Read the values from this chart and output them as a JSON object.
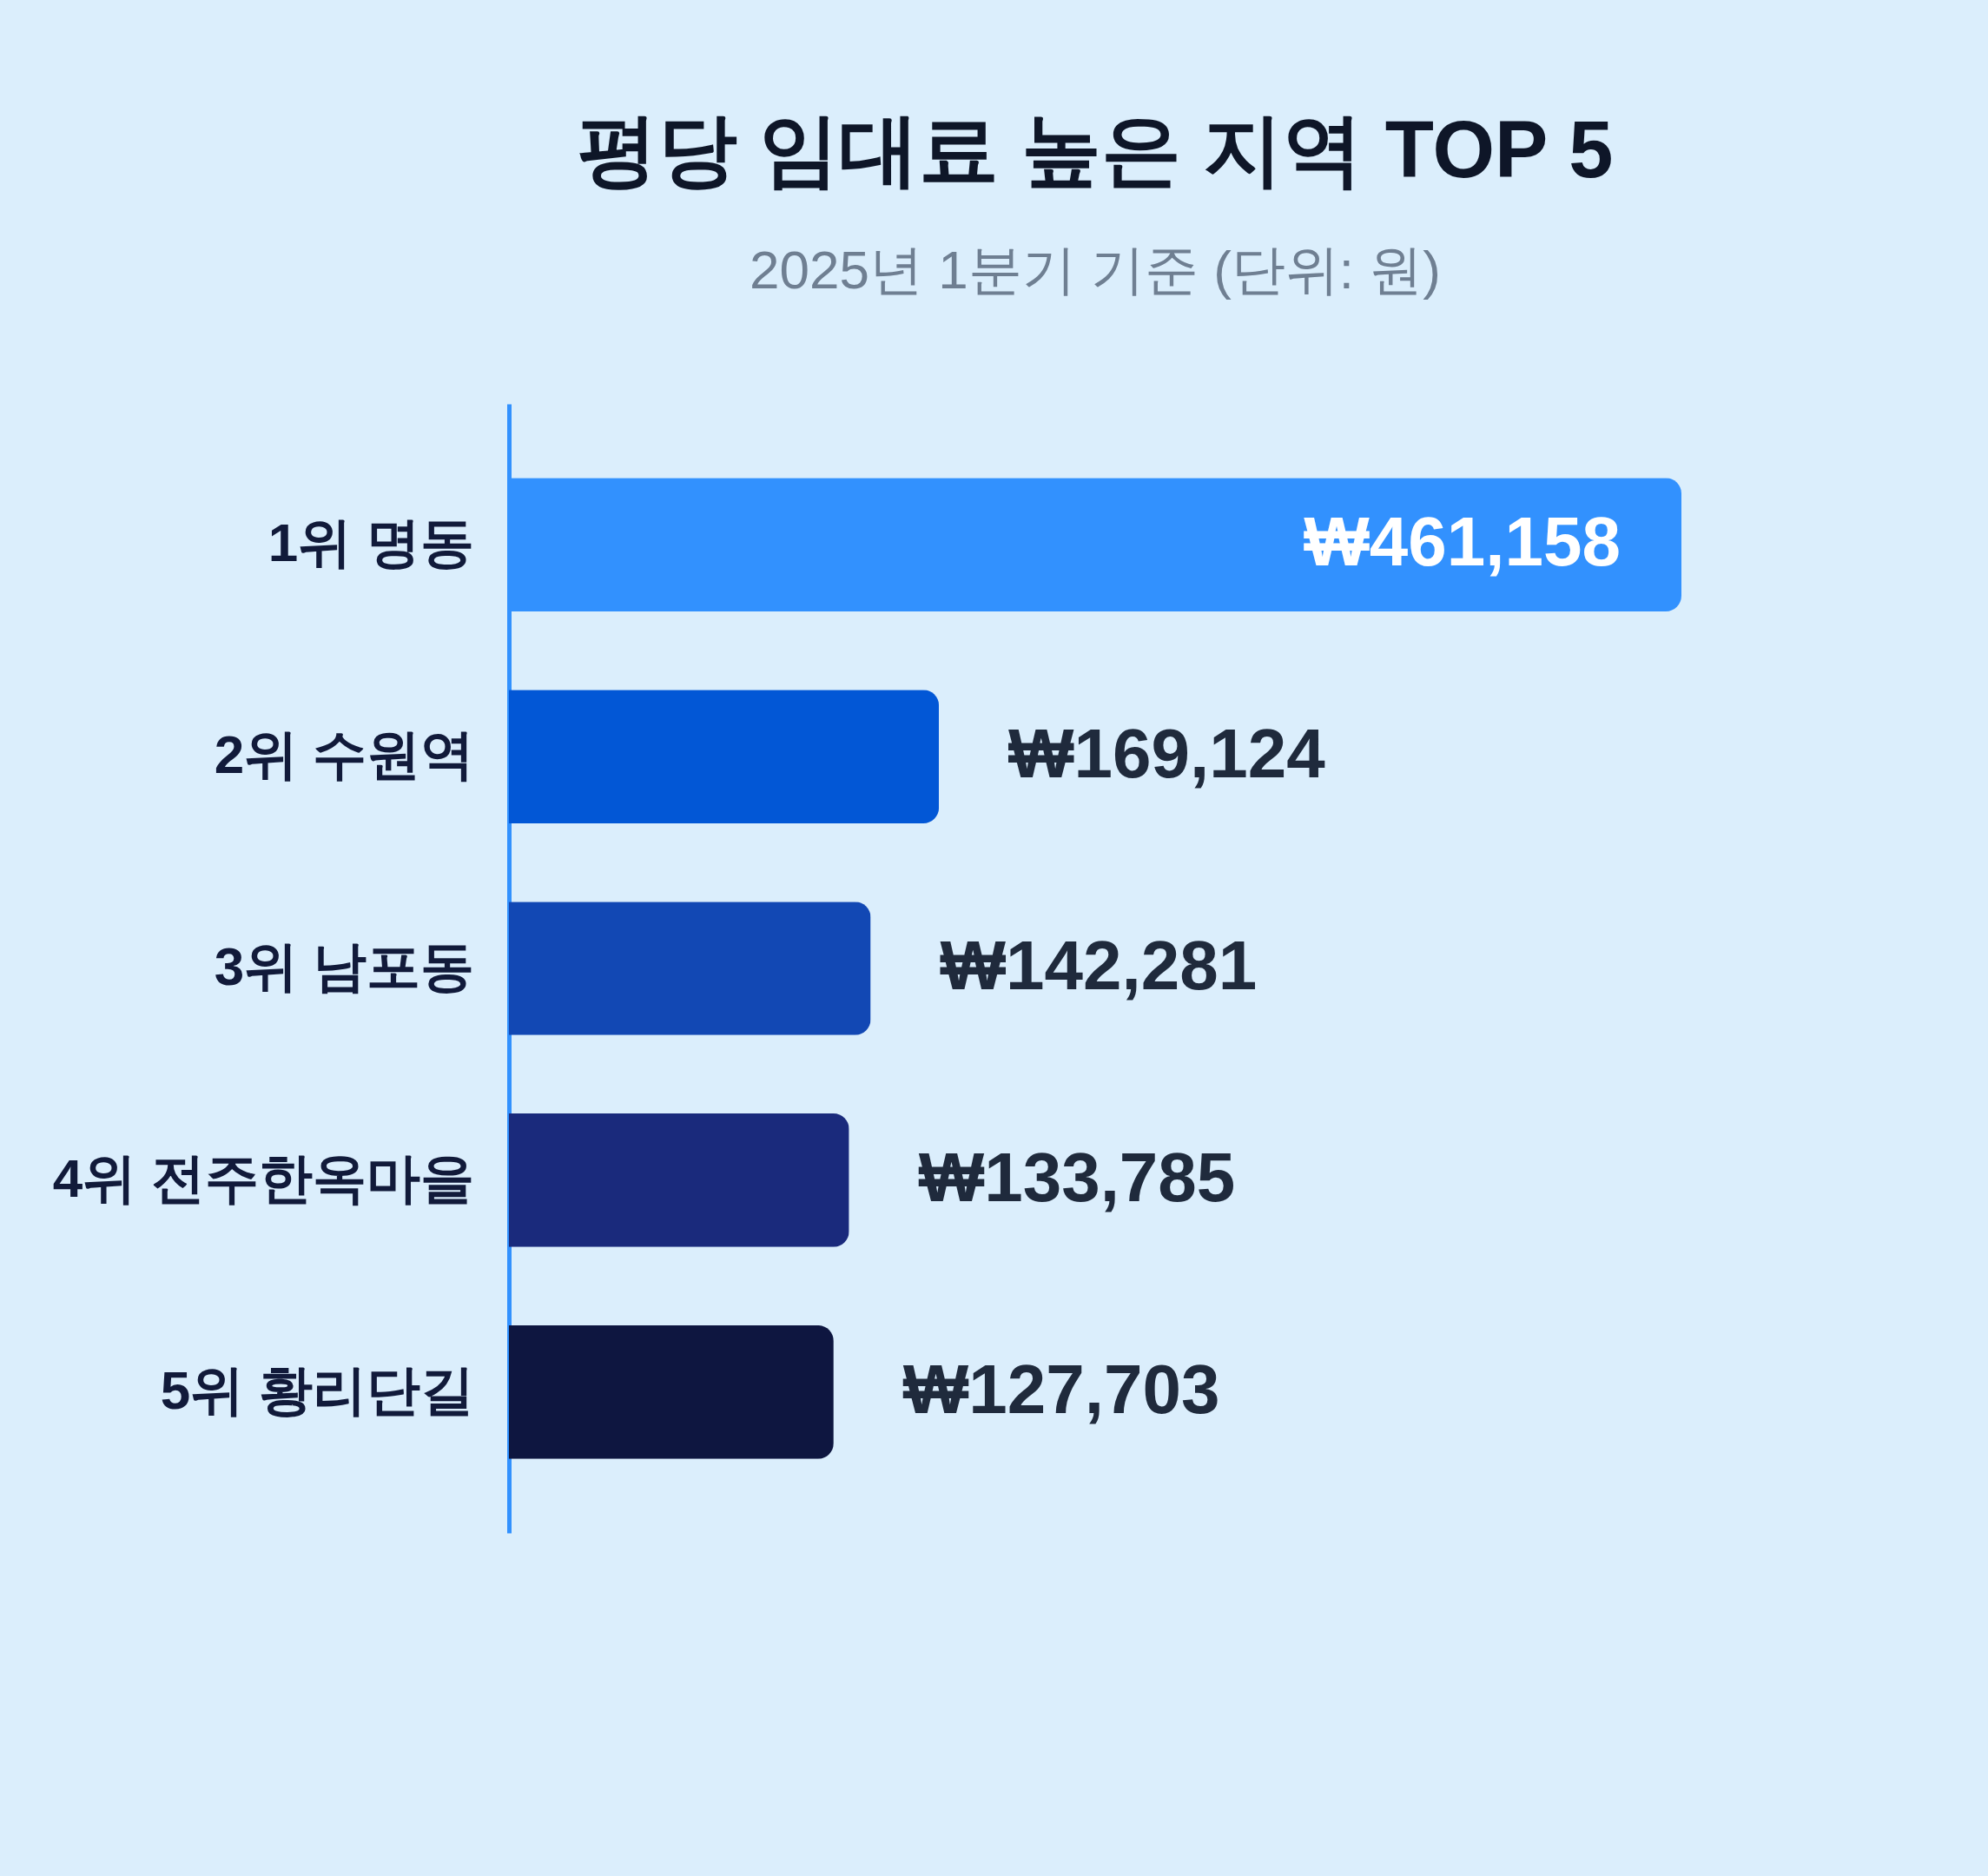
{
  "chart_data": {
    "type": "bar",
    "orientation": "horizontal",
    "title": "평당 임대료 높은 지역 TOP 5",
    "subtitle": "2025년 1분기 기준 (단위: 원)",
    "categories": [
      "1위 명동",
      "2위 수원역",
      "3위 남포동",
      "4위 전주한옥마을",
      "5위 황리단길"
    ],
    "values": [
      461158,
      169124,
      142281,
      133785,
      127703
    ],
    "colors": [
      "#3291fe",
      "#0257d6",
      "#1248b4",
      "#1a2a7c",
      "#0e1640"
    ],
    "value_labels": [
      "₩461,158",
      "₩169,124",
      "₩142,281",
      "₩133,785",
      "₩127,703"
    ]
  }
}
